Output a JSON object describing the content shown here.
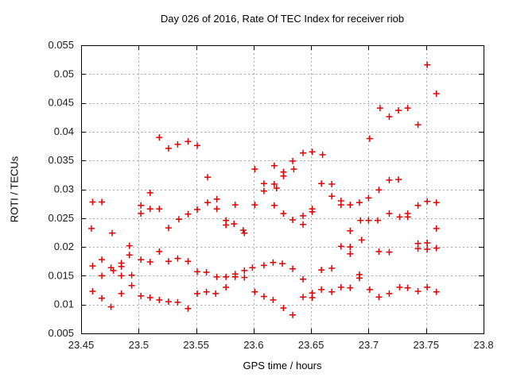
{
  "page": {
    "background": "#ffffff"
  },
  "chart_data": {
    "type": "scatter",
    "title": "Day 026 of 2016, Rate Of TEC Index for receiver riob",
    "xlabel": "GPS time / hours",
    "ylabel": "ROTI / TECUs",
    "xlim": [
      23.45,
      23.8
    ],
    "ylim": [
      0.005,
      0.055
    ],
    "xticks": [
      23.45,
      23.5,
      23.55,
      23.6,
      23.65,
      23.7,
      23.75,
      23.8
    ],
    "xtick_labels": [
      "23.45",
      "23.5",
      "23.55",
      "23.6",
      "23.65",
      "23.7",
      "23.75",
      "23.8"
    ],
    "yticks": [
      0.005,
      0.01,
      0.015,
      0.02,
      0.025,
      0.03,
      0.035,
      0.04,
      0.045,
      0.05,
      0.055
    ],
    "ytick_labels": [
      "0.005",
      "0.01",
      "0.015",
      "0.02",
      "0.025",
      "0.03",
      "0.035",
      "0.04",
      "0.045",
      "0.05",
      "0.055"
    ],
    "grid": true,
    "legend": "none",
    "colors": {
      "marker": "#e00000",
      "grid": "#a8a8a8",
      "border": "#000000",
      "text": "#1a1a1a"
    },
    "marker": {
      "shape": "plus",
      "size": 9
    },
    "series": [
      {
        "name": "ROTI",
        "points": [
          [
            23.518,
            0.039
          ],
          [
            23.526,
            0.0371
          ],
          [
            23.534,
            0.0378
          ],
          [
            23.543,
            0.0383
          ],
          [
            23.551,
            0.0376
          ],
          [
            23.56,
            0.0321
          ],
          [
            23.751,
            0.0516
          ],
          [
            23.759,
            0.0466
          ],
          [
            23.71,
            0.0441
          ],
          [
            23.718,
            0.0426
          ],
          [
            23.726,
            0.0437
          ],
          [
            23.734,
            0.0441
          ],
          [
            23.743,
            0.0412
          ],
          [
            23.701,
            0.0388
          ],
          [
            23.601,
            0.0335
          ],
          [
            23.609,
            0.031
          ],
          [
            23.609,
            0.0297
          ],
          [
            23.618,
            0.0341
          ],
          [
            23.618,
            0.0309
          ],
          [
            23.62,
            0.0302
          ],
          [
            23.626,
            0.033
          ],
          [
            23.626,
            0.0323
          ],
          [
            23.634,
            0.0349
          ],
          [
            23.635,
            0.0335
          ],
          [
            23.643,
            0.0363
          ],
          [
            23.651,
            0.0365
          ],
          [
            23.66,
            0.036
          ],
          [
            23.659,
            0.031
          ],
          [
            23.668,
            0.0309
          ],
          [
            23.709,
            0.0299
          ],
          [
            23.718,
            0.0316
          ],
          [
            23.726,
            0.0317
          ],
          [
            23.46,
            0.0278
          ],
          [
            23.468,
            0.0278
          ],
          [
            23.502,
            0.0272
          ],
          [
            23.502,
            0.0258
          ],
          [
            23.51,
            0.0294
          ],
          [
            23.51,
            0.0266
          ],
          [
            23.518,
            0.0266
          ],
          [
            23.535,
            0.0248
          ],
          [
            23.543,
            0.0257
          ],
          [
            23.551,
            0.0265
          ],
          [
            23.56,
            0.0277
          ],
          [
            23.568,
            0.0283
          ],
          [
            23.568,
            0.0266
          ],
          [
            23.584,
            0.0273
          ],
          [
            23.601,
            0.0273
          ],
          [
            23.618,
            0.0272
          ],
          [
            23.626,
            0.0258
          ],
          [
            23.634,
            0.0247
          ],
          [
            23.643,
            0.0254
          ],
          [
            23.643,
            0.0239
          ],
          [
            23.651,
            0.0266
          ],
          [
            23.651,
            0.0261
          ],
          [
            23.668,
            0.0288
          ],
          [
            23.676,
            0.028
          ],
          [
            23.676,
            0.0273
          ],
          [
            23.684,
            0.0273
          ],
          [
            23.692,
            0.0277
          ],
          [
            23.7,
            0.0285
          ],
          [
            23.718,
            0.0258
          ],
          [
            23.727,
            0.0252
          ],
          [
            23.734,
            0.0258
          ],
          [
            23.734,
            0.0252
          ],
          [
            23.693,
            0.0246
          ],
          [
            23.7,
            0.0246
          ],
          [
            23.708,
            0.0246
          ],
          [
            23.743,
            0.0272
          ],
          [
            23.751,
            0.0279
          ],
          [
            23.759,
            0.0277
          ],
          [
            23.459,
            0.0232
          ],
          [
            23.477,
            0.0224
          ],
          [
            23.526,
            0.0233
          ],
          [
            23.576,
            0.0246
          ],
          [
            23.576,
            0.0238
          ],
          [
            23.583,
            0.024
          ],
          [
            23.591,
            0.0229
          ],
          [
            23.592,
            0.0224
          ],
          [
            23.684,
            0.0228
          ],
          [
            23.759,
            0.0232
          ],
          [
            23.492,
            0.0202
          ],
          [
            23.518,
            0.0192
          ],
          [
            23.676,
            0.0201
          ],
          [
            23.684,
            0.02
          ],
          [
            23.684,
            0.0188
          ],
          [
            23.694,
            0.0212
          ],
          [
            23.709,
            0.0192
          ],
          [
            23.718,
            0.0191
          ],
          [
            23.743,
            0.0206
          ],
          [
            23.743,
            0.0197
          ],
          [
            23.751,
            0.0207
          ],
          [
            23.751,
            0.0196
          ],
          [
            23.759,
            0.0198
          ],
          [
            23.46,
            0.0167
          ],
          [
            23.468,
            0.0178
          ],
          [
            23.476,
            0.0164
          ],
          [
            23.478,
            0.0159
          ],
          [
            23.485,
            0.0172
          ],
          [
            23.485,
            0.0166
          ],
          [
            23.492,
            0.0186
          ],
          [
            23.502,
            0.0178
          ],
          [
            23.51,
            0.0174
          ],
          [
            23.526,
            0.0175
          ],
          [
            23.534,
            0.018
          ],
          [
            23.543,
            0.0175
          ],
          [
            23.599,
            0.0164
          ],
          [
            23.609,
            0.0168
          ],
          [
            23.617,
            0.0173
          ],
          [
            23.625,
            0.0171
          ],
          [
            23.634,
            0.0162
          ],
          [
            23.659,
            0.016
          ],
          [
            23.668,
            0.0163
          ],
          [
            23.551,
            0.0157
          ],
          [
            23.559,
            0.0156
          ],
          [
            23.568,
            0.0148
          ],
          [
            23.576,
            0.0148
          ],
          [
            23.584,
            0.0153
          ],
          [
            23.584,
            0.0148
          ],
          [
            23.592,
            0.0159
          ],
          [
            23.592,
            0.0147
          ],
          [
            23.643,
            0.0144
          ],
          [
            23.692,
            0.0152
          ],
          [
            23.692,
            0.0146
          ],
          [
            23.468,
            0.015
          ],
          [
            23.485,
            0.015
          ],
          [
            23.494,
            0.0151
          ],
          [
            23.46,
            0.0123
          ],
          [
            23.468,
            0.0111
          ],
          [
            23.476,
            0.0096
          ],
          [
            23.485,
            0.0119
          ],
          [
            23.494,
            0.0133
          ],
          [
            23.502,
            0.0115
          ],
          [
            23.51,
            0.0112
          ],
          [
            23.518,
            0.0108
          ],
          [
            23.526,
            0.0105
          ],
          [
            23.534,
            0.0104
          ],
          [
            23.543,
            0.0093
          ],
          [
            23.551,
            0.0119
          ],
          [
            23.559,
            0.0122
          ],
          [
            23.567,
            0.0119
          ],
          [
            23.576,
            0.013
          ],
          [
            23.601,
            0.0122
          ],
          [
            23.609,
            0.0114
          ],
          [
            23.617,
            0.0108
          ],
          [
            23.626,
            0.0094
          ],
          [
            23.634,
            0.0082
          ],
          [
            23.643,
            0.0113
          ],
          [
            23.651,
            0.012
          ],
          [
            23.651,
            0.0112
          ],
          [
            23.659,
            0.0126
          ],
          [
            23.668,
            0.0122
          ],
          [
            23.676,
            0.013
          ],
          [
            23.684,
            0.0129
          ],
          [
            23.701,
            0.0126
          ],
          [
            23.709,
            0.0113
          ],
          [
            23.718,
            0.0119
          ],
          [
            23.727,
            0.013
          ],
          [
            23.734,
            0.0129
          ],
          [
            23.743,
            0.0123
          ],
          [
            23.751,
            0.013
          ],
          [
            23.759,
            0.0122
          ]
        ]
      }
    ]
  }
}
